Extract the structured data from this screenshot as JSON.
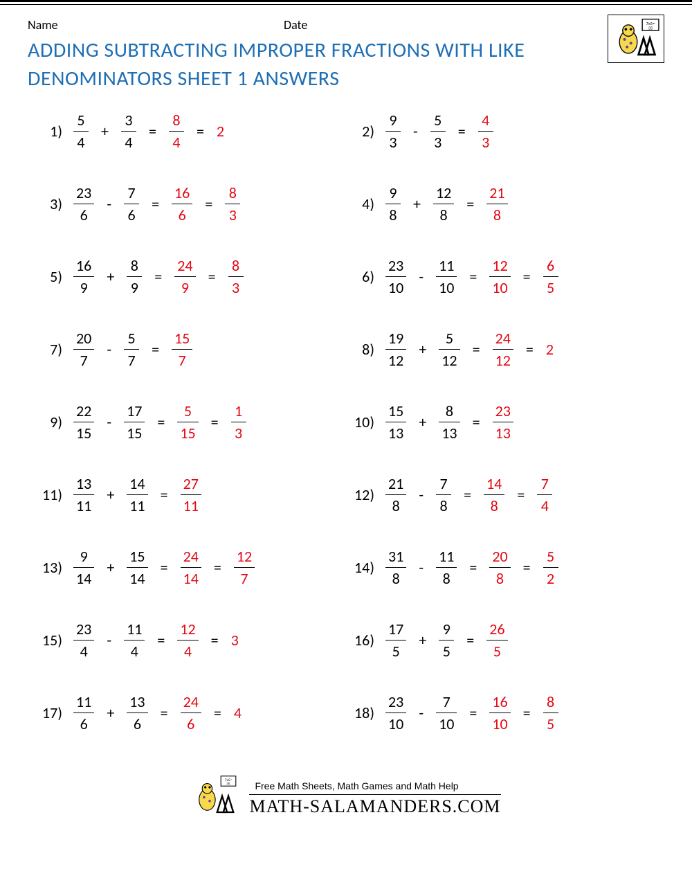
{
  "header": {
    "name_label": "Name",
    "date_label": "Date"
  },
  "title": "ADDING SUBTRACTING IMPROPER FRACTIONS WITH LIKE DENOMINATORS SHEET 1 ANSWERS",
  "colors": {
    "title": "#1f6fb5",
    "answer": "#e30613",
    "text": "#000000"
  },
  "problems": [
    {
      "n": "1)",
      "a": {
        "num": "5",
        "den": "4"
      },
      "op": "+",
      "b": {
        "num": "3",
        "den": "4"
      },
      "r": {
        "num": "8",
        "den": "4"
      },
      "s": "2"
    },
    {
      "n": "2)",
      "a": {
        "num": "9",
        "den": "3"
      },
      "op": "-",
      "b": {
        "num": "5",
        "den": "3"
      },
      "r": {
        "num": "4",
        "den": "3"
      }
    },
    {
      "n": "3)",
      "a": {
        "num": "23",
        "den": "6"
      },
      "op": "-",
      "b": {
        "num": "7",
        "den": "6"
      },
      "r": {
        "num": "16",
        "den": "6"
      },
      "s": {
        "num": "8",
        "den": "3"
      }
    },
    {
      "n": "4)",
      "a": {
        "num": "9",
        "den": "8"
      },
      "op": "+",
      "b": {
        "num": "12",
        "den": "8"
      },
      "r": {
        "num": "21",
        "den": "8"
      }
    },
    {
      "n": "5)",
      "a": {
        "num": "16",
        "den": "9"
      },
      "op": "+",
      "b": {
        "num": "8",
        "den": "9"
      },
      "r": {
        "num": "24",
        "den": "9"
      },
      "s": {
        "num": "8",
        "den": "3"
      }
    },
    {
      "n": "6)",
      "a": {
        "num": "23",
        "den": "10"
      },
      "op": "-",
      "b": {
        "num": "11",
        "den": "10"
      },
      "r": {
        "num": "12",
        "den": "10"
      },
      "s": {
        "num": "6",
        "den": "5"
      }
    },
    {
      "n": "7)",
      "a": {
        "num": "20",
        "den": "7"
      },
      "op": "-",
      "b": {
        "num": "5",
        "den": "7"
      },
      "r": {
        "num": "15",
        "den": "7"
      }
    },
    {
      "n": "8)",
      "a": {
        "num": "19",
        "den": "12"
      },
      "op": "+",
      "b": {
        "num": "5",
        "den": "12"
      },
      "r": {
        "num": "24",
        "den": "12"
      },
      "s": "2"
    },
    {
      "n": "9)",
      "a": {
        "num": "22",
        "den": "15"
      },
      "op": "-",
      "b": {
        "num": "17",
        "den": "15"
      },
      "r": {
        "num": "5",
        "den": "15"
      },
      "s": {
        "num": "1",
        "den": "3"
      }
    },
    {
      "n": "10)",
      "a": {
        "num": "15",
        "den": "13"
      },
      "op": "+",
      "b": {
        "num": "8",
        "den": "13"
      },
      "r": {
        "num": "23",
        "den": "13"
      }
    },
    {
      "n": "11)",
      "a": {
        "num": "13",
        "den": "11"
      },
      "op": "+",
      "b": {
        "num": "14",
        "den": "11"
      },
      "r": {
        "num": "27",
        "den": "11"
      }
    },
    {
      "n": "12)",
      "a": {
        "num": "21",
        "den": "8"
      },
      "op": "-",
      "b": {
        "num": "7",
        "den": "8"
      },
      "r": {
        "num": "14",
        "den": "8"
      },
      "s": {
        "num": "7",
        "den": "4"
      }
    },
    {
      "n": "13)",
      "a": {
        "num": "9",
        "den": "14"
      },
      "op": "+",
      "b": {
        "num": "15",
        "den": "14"
      },
      "r": {
        "num": "24",
        "den": "14"
      },
      "s": {
        "num": "12",
        "den": "7"
      }
    },
    {
      "n": "14)",
      "a": {
        "num": "31",
        "den": "8"
      },
      "op": "-",
      "b": {
        "num": "11",
        "den": "8"
      },
      "r": {
        "num": "20",
        "den": "8"
      },
      "s": {
        "num": "5",
        "den": "2"
      }
    },
    {
      "n": "15)",
      "a": {
        "num": "23",
        "den": "4"
      },
      "op": "-",
      "b": {
        "num": "11",
        "den": "4"
      },
      "r": {
        "num": "12",
        "den": "4"
      },
      "s": "3"
    },
    {
      "n": "16)",
      "a": {
        "num": "17",
        "den": "5"
      },
      "op": "+",
      "b": {
        "num": "9",
        "den": "5"
      },
      "r": {
        "num": "26",
        "den": "5"
      }
    },
    {
      "n": "17)",
      "a": {
        "num": "11",
        "den": "6"
      },
      "op": "+",
      "b": {
        "num": "13",
        "den": "6"
      },
      "r": {
        "num": "24",
        "den": "6"
      },
      "s": "4"
    },
    {
      "n": "18)",
      "a": {
        "num": "23",
        "den": "10"
      },
      "op": "-",
      "b": {
        "num": "7",
        "den": "10"
      },
      "r": {
        "num": "16",
        "den": "10"
      },
      "s": {
        "num": "8",
        "den": "5"
      }
    }
  ],
  "footer": {
    "line1": "Free Math Sheets, Math Games and Math Help",
    "line2": "MATH-SALAMANDERS.COM"
  }
}
